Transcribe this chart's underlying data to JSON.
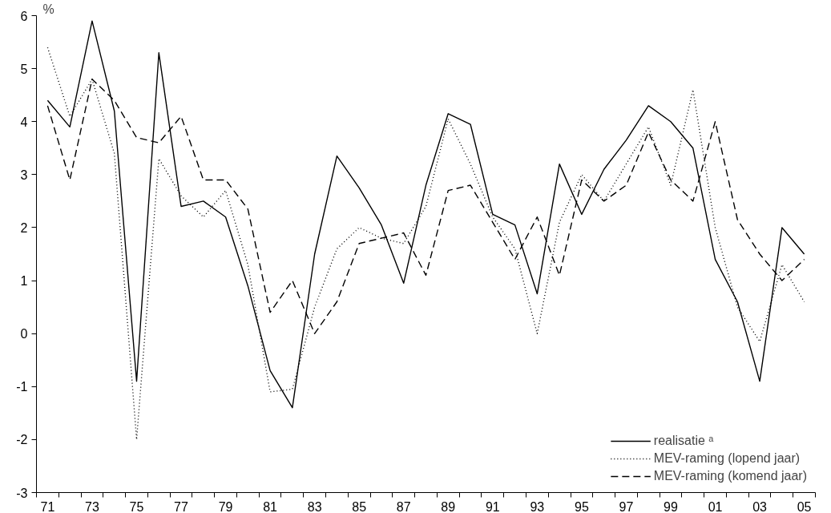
{
  "chart_data": {
    "type": "line",
    "ylabel": "%",
    "categories": [
      "71",
      null,
      "73",
      null,
      "75",
      null,
      "77",
      null,
      "79",
      null,
      "81",
      null,
      "83",
      null,
      "85",
      null,
      "87",
      null,
      "89",
      null,
      "91",
      null,
      "93",
      null,
      "95",
      null,
      "97",
      null,
      "99",
      null,
      "01",
      null,
      "03",
      null,
      "05"
    ],
    "series": [
      {
        "name": "realisatie ᵃ",
        "color": "#000000",
        "line_style": "solid",
        "values": [
          4.4,
          3.9,
          5.9,
          4.2,
          -0.9,
          5.3,
          2.4,
          2.5,
          2.2,
          0.9,
          -0.7,
          -1.4,
          1.5,
          3.35,
          2.75,
          2.05,
          0.95,
          2.8,
          4.15,
          3.95,
          2.25,
          2.05,
          0.75,
          3.2,
          2.25,
          3.1,
          3.65,
          4.3,
          4.0,
          3.5,
          1.4,
          0.6,
          -0.9,
          2.0,
          1.5
        ]
      },
      {
        "name": "MEV-raming (lopend jaar)",
        "color": "#000000",
        "line_style": "dotted",
        "values": [
          5.4,
          4.1,
          4.8,
          3.4,
          -2.0,
          3.3,
          2.6,
          2.2,
          2.7,
          1.3,
          -1.1,
          -1.05,
          0.5,
          1.6,
          2.0,
          1.8,
          1.7,
          2.4,
          4.05,
          3.2,
          2.2,
          1.6,
          0.0,
          2.1,
          3.0,
          2.5,
          3.2,
          3.9,
          2.8,
          4.6,
          2.0,
          0.5,
          -0.15,
          1.3,
          0.6
        ]
      },
      {
        "name": "MEV-raming (komend jaar)",
        "color": "#000000",
        "line_style": "dashed",
        "values": [
          4.3,
          2.9,
          4.8,
          4.4,
          3.7,
          3.6,
          4.1,
          2.9,
          2.9,
          2.35,
          0.4,
          1.0,
          0.0,
          0.6,
          1.7,
          1.8,
          1.9,
          1.1,
          2.7,
          2.8,
          2.1,
          1.4,
          2.2,
          1.1,
          2.9,
          2.5,
          2.8,
          3.8,
          2.9,
          2.5,
          4.0,
          2.15,
          1.5,
          1.0,
          1.4
        ]
      }
    ],
    "ylim": [
      -3,
      6
    ],
    "yticks": [
      -3,
      -2,
      -1,
      0,
      1,
      2,
      3,
      4,
      5,
      6
    ],
    "grid": false,
    "legend": "bottom right",
    "marker": "none"
  }
}
